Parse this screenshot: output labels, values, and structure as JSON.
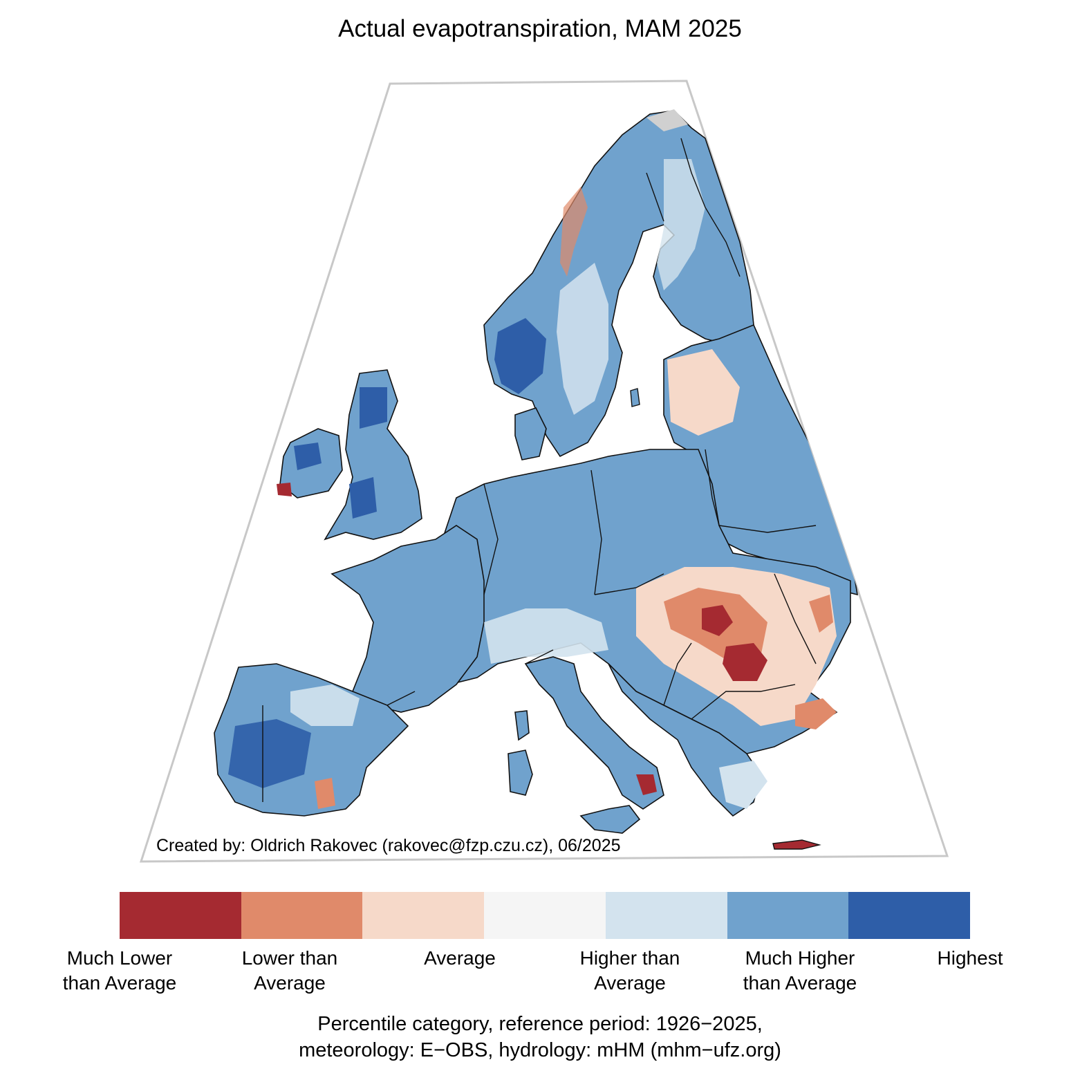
{
  "title": "Actual evapotranspiration, MAM 2025",
  "credit": "Created by: Oldrich Rakovec (rakovec@fzp.czu.cz), 06/2025",
  "legend": {
    "categories": [
      {
        "label_line1": "Much Lower",
        "label_line2": "than Average",
        "color": "#a52a31"
      },
      {
        "label_line1": "Lower than",
        "label_line2": "Average",
        "color": "#e08a6a"
      },
      {
        "label_line1": "Average",
        "label_line2": "",
        "color": "#f6d9c9"
      },
      {
        "label_line1": "Higher than",
        "label_line2": "Average",
        "color": "#f5f5f5"
      },
      {
        "label_line1": "Much Higher",
        "label_line2": "than Average",
        "color": "#d3e3ee"
      },
      {
        "label_line1": "Highest",
        "label_line2": "",
        "color": "#70a2cd"
      }
    ],
    "extra_color": "#2e5ea8"
  },
  "footer": {
    "line1": "Percentile category, reference period: 1926−2025,",
    "line2": "meteorology: E−OBS, hydrology: mHM (mhm−ufz.org)"
  },
  "colors": {
    "domain_border": "#c8c8c8",
    "coastline": "#111111",
    "no_data": "#d0d0d0"
  }
}
